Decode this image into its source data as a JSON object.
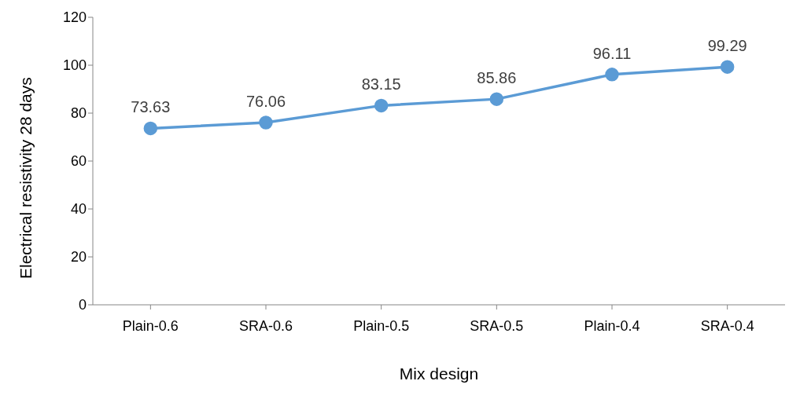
{
  "chart_data": {
    "type": "line",
    "xlabel": "Mix design",
    "ylabel": "Electrical resistivity 28 days",
    "categories": [
      "Plain-0.6",
      "SRA-0.6",
      "Plain-0.5",
      "SRA-0.5",
      "Plain-0.4",
      "SRA-0.4"
    ],
    "series": [
      {
        "color": "#5b9bd5",
        "values": [
          73.63,
          76.06,
          83.15,
          85.86,
          96.11,
          99.29
        ]
      }
    ],
    "ylim": [
      0,
      120
    ],
    "yticks": [
      0,
      20,
      40,
      60,
      80,
      100,
      120
    ],
    "grid": false,
    "legend": false,
    "marker": "circle",
    "line_style": "solid",
    "data_labels": true
  }
}
